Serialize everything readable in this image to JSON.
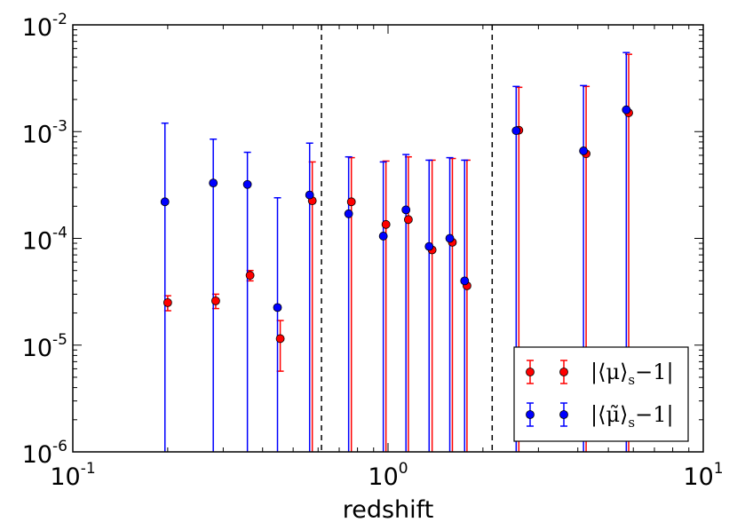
{
  "chart_data": {
    "type": "scatter",
    "title": "",
    "xlabel": "redshift",
    "ylabel": "",
    "xscale": "log",
    "yscale": "log",
    "xlim": [
      0.1,
      10
    ],
    "ylim": [
      1e-06,
      0.01
    ],
    "grid": false,
    "x_tick_labels": [
      {
        "value": 0.1,
        "base": "10",
        "exp": "-1"
      },
      {
        "value": 1,
        "base": "10",
        "exp": "0"
      },
      {
        "value": 10,
        "base": "10",
        "exp": "1"
      }
    ],
    "y_tick_labels": [
      {
        "value": 1e-06,
        "base": "10",
        "exp": "-6"
      },
      {
        "value": 1e-05,
        "base": "10",
        "exp": "-5"
      },
      {
        "value": 0.0001,
        "base": "10",
        "exp": "-4"
      },
      {
        "value": 0.001,
        "base": "10",
        "exp": "-3"
      },
      {
        "value": 0.01,
        "base": "10",
        "exp": "-2"
      }
    ],
    "vlines": [
      0.615,
      2.14
    ],
    "legend_position": "bottom-right",
    "series": [
      {
        "name": "|⟨μ⟩s−1|",
        "legend_main": "|⟨μ⟩",
        "legend_sub": "s",
        "legend_tail": "−1|",
        "color": "#ff0000",
        "points": [
          {
            "x": 0.2,
            "y": 2.5e-05,
            "ylow": 2.1e-05,
            "yhigh": 2.9e-05
          },
          {
            "x": 0.284,
            "y": 2.6e-05,
            "ylow": 2.2e-05,
            "yhigh": 3e-05
          },
          {
            "x": 0.365,
            "y": 4.5e-05,
            "ylow": 4e-05,
            "yhigh": 5e-05
          },
          {
            "x": 0.455,
            "y": 1.15e-05,
            "ylow": 5.7e-06,
            "yhigh": 1.7e-05
          },
          {
            "x": 0.575,
            "y": 0.000225,
            "ylow": 1e-06,
            "yhigh": 0.00052
          },
          {
            "x": 0.765,
            "y": 0.00022,
            "ylow": 1e-06,
            "yhigh": 0.00057
          },
          {
            "x": 0.985,
            "y": 0.000135,
            "ylow": 1e-06,
            "yhigh": 0.00053
          },
          {
            "x": 1.16,
            "y": 0.00015,
            "ylow": 1e-06,
            "yhigh": 0.00058
          },
          {
            "x": 1.38,
            "y": 7.8e-05,
            "ylow": 1e-06,
            "yhigh": 0.00054
          },
          {
            "x": 1.6,
            "y": 9.2e-05,
            "ylow": 1e-06,
            "yhigh": 0.00056
          },
          {
            "x": 1.78,
            "y": 3.6e-05,
            "ylow": 1e-06,
            "yhigh": 0.00054
          },
          {
            "x": 2.6,
            "y": 0.00103,
            "ylow": 1e-06,
            "yhigh": 0.0026
          },
          {
            "x": 4.25,
            "y": 0.00062,
            "ylow": 1e-06,
            "yhigh": 0.00265
          },
          {
            "x": 5.8,
            "y": 0.0015,
            "ylow": 1e-06,
            "yhigh": 0.0053
          }
        ]
      },
      {
        "name": "|⟨μ̃⟩s−1|",
        "legend_main": "|⟨μ̃⟩",
        "legend_sub": "s",
        "legend_tail": "−1|",
        "color": "#0000ff",
        "points": [
          {
            "x": 0.196,
            "y": 0.00022,
            "ylow": 1e-06,
            "yhigh": 0.0012
          },
          {
            "x": 0.279,
            "y": 0.00033,
            "ylow": 1e-06,
            "yhigh": 0.00085
          },
          {
            "x": 0.358,
            "y": 0.00032,
            "ylow": 1e-06,
            "yhigh": 0.00064
          },
          {
            "x": 0.446,
            "y": 2.25e-05,
            "ylow": 1e-06,
            "yhigh": 0.00024
          },
          {
            "x": 0.564,
            "y": 0.000255,
            "ylow": 1e-06,
            "yhigh": 0.00078
          },
          {
            "x": 0.75,
            "y": 0.00017,
            "ylow": 1e-06,
            "yhigh": 0.00058
          },
          {
            "x": 0.966,
            "y": 0.000105,
            "ylow": 1e-06,
            "yhigh": 0.00052
          },
          {
            "x": 1.14,
            "y": 0.000185,
            "ylow": 1e-06,
            "yhigh": 0.00061
          },
          {
            "x": 1.35,
            "y": 8.4e-05,
            "ylow": 1e-06,
            "yhigh": 0.00054
          },
          {
            "x": 1.57,
            "y": 0.0001,
            "ylow": 1e-06,
            "yhigh": 0.00057
          },
          {
            "x": 1.75,
            "y": 4e-05,
            "ylow": 1e-06,
            "yhigh": 0.00054
          },
          {
            "x": 2.55,
            "y": 0.00102,
            "ylow": 1e-06,
            "yhigh": 0.00265
          },
          {
            "x": 4.17,
            "y": 0.00066,
            "ylow": 1e-06,
            "yhigh": 0.0027
          },
          {
            "x": 5.7,
            "y": 0.0016,
            "ylow": 1e-06,
            "yhigh": 0.0055
          }
        ]
      }
    ]
  }
}
